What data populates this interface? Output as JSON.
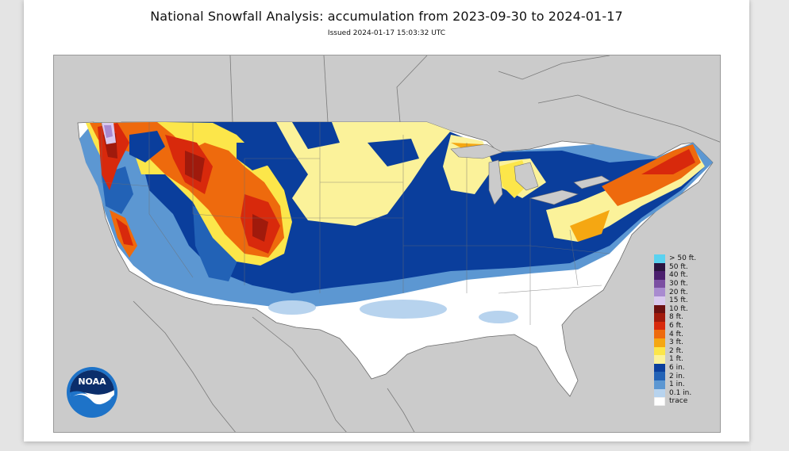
{
  "header": {
    "title": "National Snowfall Analysis: accumulation from 2023-09-30 to 2024-01-17",
    "issued": "Issued 2024-01-17 15:03:32 UTC"
  },
  "map": {
    "background_color": "#cbcbcb",
    "land_color": "#ffffff",
    "boundary_color": "#7a7a7a"
  },
  "legend": {
    "items": [
      {
        "label": "> 50 ft.",
        "color": "#5ad2f0"
      },
      {
        "label": "50 ft.",
        "color": "#2a1440"
      },
      {
        "label": "40 ft.",
        "color": "#4b1f6e"
      },
      {
        "label": "30 ft.",
        "color": "#7b4fa2"
      },
      {
        "label": "20 ft.",
        "color": "#a98bd0"
      },
      {
        "label": "15 ft.",
        "color": "#d9c9ee"
      },
      {
        "label": "10 ft.",
        "color": "#6b1010"
      },
      {
        "label": "8 ft.",
        "color": "#a01a0c"
      },
      {
        "label": "6 ft.",
        "color": "#d8290c"
      },
      {
        "label": "4 ft.",
        "color": "#ee6a0d"
      },
      {
        "label": "3 ft.",
        "color": "#f5a712"
      },
      {
        "label": "2 ft.",
        "color": "#fce64a"
      },
      {
        "label": "1 ft.",
        "color": "#fbf29a"
      },
      {
        "label": "6 in.",
        "color": "#0a3e9c"
      },
      {
        "label": "2 in.",
        "color": "#2262b6"
      },
      {
        "label": "1 in.",
        "color": "#5c97d2"
      },
      {
        "label": "0.1 in.",
        "color": "#b7d3ee"
      },
      {
        "label": "trace",
        "color": "#ffffff"
      }
    ]
  },
  "logo": {
    "text": "NOAA",
    "icon": "noaa-logo-icon"
  }
}
